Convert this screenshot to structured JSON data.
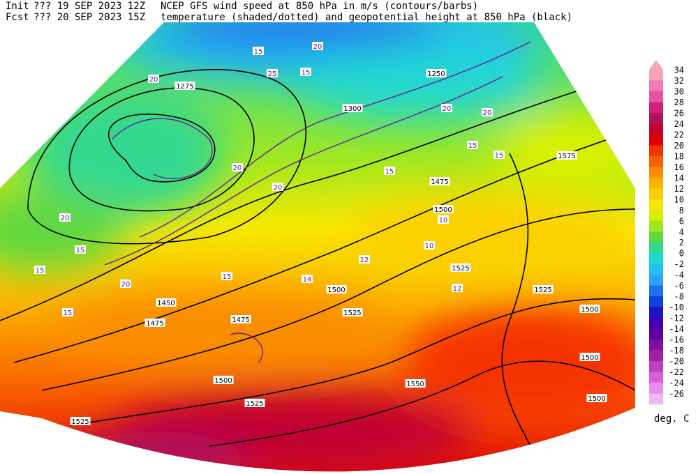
{
  "header": {
    "init_label": "Init",
    "init_run": "??? 19 SEP 2023 12Z",
    "fcst_label": "Fcst",
    "fcst_run": "??? 20 SEP 2023 15Z",
    "title_line1": "NCEP GFS wind speed at 850 hPa in m/s (contours/barbs)",
    "title_line2": "temperature (shaded/dotted) and geopotential height at 850 hPa (black)"
  },
  "colorbar": {
    "unit": "deg. C",
    "ticks": [
      34,
      32,
      30,
      28,
      26,
      24,
      22,
      20,
      18,
      16,
      14,
      12,
      10,
      8,
      6,
      4,
      2,
      0,
      -2,
      -4,
      -6,
      -8,
      -10,
      -12,
      -14,
      -16,
      -18,
      -20,
      -22,
      -24,
      -26
    ],
    "colors": [
      "#f4a6b8",
      "#f07ab0",
      "#e850a0",
      "#d02080",
      "#b0105e",
      "#c00030",
      "#e00000",
      "#f53000",
      "#f86000",
      "#fa8c00",
      "#fcb000",
      "#fcd000",
      "#f8e800",
      "#d8f000",
      "#a0e820",
      "#60d840",
      "#30d890",
      "#20d8d0",
      "#20c0f0",
      "#30a0f8",
      "#2070f0",
      "#1040e0",
      "#2010c8",
      "#4000b0",
      "#6000a0",
      "#8010a0",
      "#a020a8",
      "#c040c0",
      "#d860d8",
      "#e890e8",
      "#f0b8f0"
    ]
  },
  "map_labels": {
    "heights": [
      1475,
      1500,
      1575,
      1525,
      1525,
      1500,
      1500,
      1500,
      1550,
      1525,
      1525,
      1500,
      1475,
      1475,
      1450,
      1500,
      1525,
      1275,
      1300,
      1250
    ],
    "wind": [
      20,
      25,
      15,
      20,
      15,
      20,
      20,
      15,
      15,
      20,
      20,
      15,
      20,
      15,
      15,
      15,
      20,
      15,
      10,
      10,
      12,
      14,
      12
    ]
  }
}
